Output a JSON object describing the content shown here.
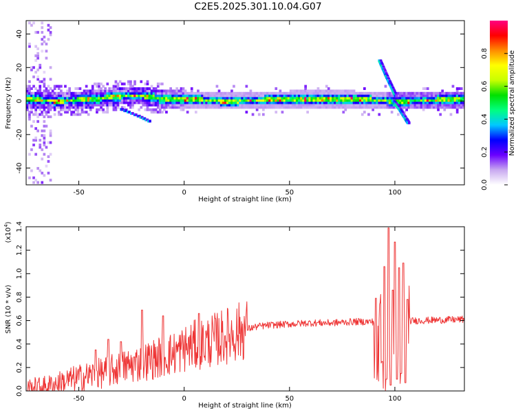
{
  "page_title": "C2E5.2025.301.10.04.G07",
  "chart_data": [
    {
      "type": "heatmap",
      "title": "C2E5.2025.301.10.04.G07",
      "xlabel": "Height of straight line (km)",
      "ylabel": "Frequency (Hz)",
      "xlim": [
        -75,
        133
      ],
      "ylim": [
        -50,
        48
      ],
      "x_ticks": [
        -50,
        0,
        50,
        100
      ],
      "x_tick_labels": [
        "-50",
        "0",
        "50",
        "100"
      ],
      "y_ticks": [
        -40,
        -20,
        0,
        20,
        40
      ],
      "y_tick_labels": [
        "-40",
        "-20",
        "0",
        "20",
        "40"
      ],
      "colorbar": {
        "label": "Normalized spectral amplitude",
        "range": [
          0.0,
          1.0
        ],
        "ticks": [
          0.0,
          0.2,
          0.4,
          0.6,
          0.8
        ],
        "tick_labels": [
          "0.0",
          "0.2",
          "0.4",
          "0.6",
          "0.8"
        ],
        "colormap": [
          "#ffffff",
          "#c8a8f0",
          "#6a00ff",
          "#0000ff",
          "#00c8ff",
          "#00ff80",
          "#00e000",
          "#c8ff00",
          "#ffff00",
          "#ff8c00",
          "#ff0000",
          "#ff0080"
        ]
      },
      "carrier_band": {
        "x_start": -75,
        "x_end": 133,
        "center_freq_hz": [
          [
            -75,
            1
          ],
          [
            -60,
            0
          ],
          [
            -45,
            1
          ],
          [
            -30,
            3
          ],
          [
            -20,
            3
          ],
          [
            -10,
            1
          ],
          [
            0,
            1
          ],
          [
            20,
            0
          ],
          [
            50,
            1
          ],
          [
            80,
            1
          ],
          [
            100,
            0
          ],
          [
            133,
            1
          ]
        ]
      },
      "secondary_traces": [
        {
          "name": "ascending branch",
          "points": [
            [
              92.5,
              24
            ],
            [
              96,
              14
            ],
            [
              99,
              6
            ],
            [
              100,
              3
            ]
          ]
        },
        {
          "name": "descending branch",
          "points": [
            [
              99,
              0
            ],
            [
              102,
              -5
            ],
            [
              105,
              -11
            ],
            [
              106,
              -13
            ]
          ]
        },
        {
          "name": "lower artifact",
          "points": [
            [
              -30,
              -5
            ],
            [
              -22,
              -9
            ],
            [
              -17,
              -12
            ]
          ]
        }
      ]
    },
    {
      "type": "line",
      "xlabel": "Height of straight line (km)",
      "ylabel": "SNR (10 * v/v)",
      "y_multiplier": "(x10^4)",
      "y_multiplier_base": "(x10",
      "y_multiplier_exp": "4",
      "y_multiplier_close": ")",
      "xlim": [
        -75,
        133
      ],
      "ylim": [
        0.0,
        1.4
      ],
      "x_ticks": [
        -50,
        0,
        50,
        100
      ],
      "x_tick_labels": [
        "-50",
        "0",
        "50",
        "100"
      ],
      "y_ticks": [
        0.0,
        0.2,
        0.4,
        0.6,
        0.8,
        1.0,
        1.2,
        1.4
      ],
      "y_tick_labels": [
        "0.0",
        "0.2",
        "0.4",
        "0.6",
        "0.8",
        "1.0",
        "1.2",
        "1.4"
      ],
      "series": [
        {
          "name": "SNR",
          "color": "#ee3333",
          "envelope_x": [
            -75,
            -65,
            -55,
            -45,
            -35,
            -25,
            -15,
            -5,
            0,
            5,
            10,
            15,
            20,
            25,
            30,
            35,
            40,
            50,
            60,
            70,
            80,
            90,
            133
          ],
          "envelope_y": [
            0.02,
            0.04,
            0.09,
            0.13,
            0.17,
            0.22,
            0.27,
            0.32,
            0.36,
            0.39,
            0.41,
            0.44,
            0.47,
            0.5,
            0.53,
            0.55,
            0.56,
            0.57,
            0.58,
            0.58,
            0.59,
            0.59,
            0.61
          ],
          "spikes": [
            [
              -20,
              0.69
            ],
            [
              -10,
              0.64
            ],
            [
              7,
              0.66
            ],
            [
              -30,
              0.42
            ],
            [
              -36,
              0.44
            ],
            [
              -42,
              0.35
            ],
            [
              91,
              0.79
            ],
            [
              94,
              0.25
            ],
            [
              95,
              1.06
            ],
            [
              96,
              0.1
            ],
            [
              97,
              1.39
            ],
            [
              98,
              0.05
            ],
            [
              99,
              0.86
            ],
            [
              100,
              1.27
            ],
            [
              101,
              0.1
            ],
            [
              102,
              1.05
            ],
            [
              103,
              0.15
            ],
            [
              104,
              1.09
            ],
            [
              105,
              0.07
            ],
            [
              106,
              0.78
            ]
          ]
        }
      ]
    }
  ]
}
